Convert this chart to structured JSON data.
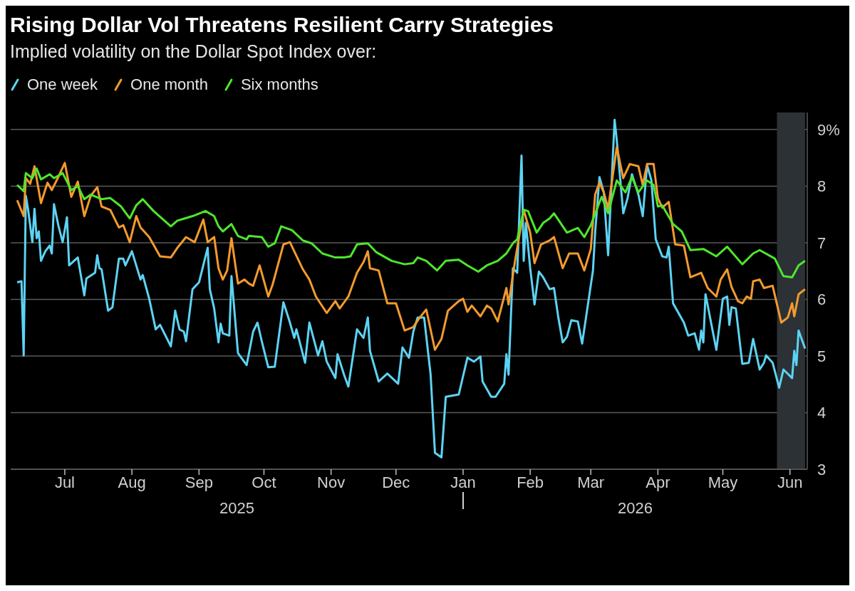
{
  "chart_data": {
    "type": "line",
    "title": "Rising Dollar Vol Threatens Resilient Carry Strategies",
    "subtitle": "Implied volatility on the Dollar Spot Index over:",
    "annotations": [
      "2025",
      "2026"
    ],
    "legend": "top left",
    "grid": "y",
    "line_style": "solid",
    "xlim": [
      "2025-06-06",
      "2026-06-09"
    ],
    "xticks": [
      {
        "value": "2025-07-01",
        "label": "Jul"
      },
      {
        "value": "2025-08-01",
        "label": "Aug"
      },
      {
        "value": "2025-09-01",
        "label": "Sep"
      },
      {
        "value": "2025-10-01",
        "label": "Oct"
      },
      {
        "value": "2025-11-01",
        "label": "Nov"
      },
      {
        "value": "2025-12-01",
        "label": "Dec"
      },
      {
        "value": "2026-01-01",
        "label": "Jan"
      },
      {
        "value": "2026-02-01",
        "label": "Feb"
      },
      {
        "value": "2026-03-01",
        "label": "Mar"
      },
      {
        "value": "2026-04-01",
        "label": "Apr"
      },
      {
        "value": "2026-05-01",
        "label": "May"
      },
      {
        "value": "2026-06-01",
        "label": "Jun"
      }
    ],
    "ylim": [
      3,
      9.3
    ],
    "yticks": [
      3,
      4,
      5,
      6,
      7,
      8,
      {
        "value": 9,
        "label": "9%"
      }
    ],
    "bands": [
      {
        "axis": "x",
        "from": "2026-05-26",
        "to": "2026-06-08",
        "color": "#2c3135"
      }
    ],
    "series": [
      {
        "name": "One week",
        "color": "#5dd3f3",
        "x": [
          "2025-06-09",
          "2025-06-11",
          "2025-06-12",
          "2025-06-13",
          "2025-06-14",
          "2025-06-16",
          "2025-06-17",
          "2025-06-18",
          "2025-06-19",
          "2025-06-20",
          "2025-06-22",
          "2025-06-24",
          "2025-06-25",
          "2025-06-26",
          "2025-06-28",
          "2025-06-30",
          "2025-07-02",
          "2025-07-03",
          "2025-07-07",
          "2025-07-10",
          "2025-07-11",
          "2025-07-15",
          "2025-07-16",
          "2025-07-17",
          "2025-07-18",
          "2025-07-21",
          "2025-07-23",
          "2025-07-26",
          "2025-07-28",
          "2025-07-29",
          "2025-08-01",
          "2025-08-05",
          "2025-08-06",
          "2025-08-09",
          "2025-08-12",
          "2025-08-14",
          "2025-08-19",
          "2025-08-21",
          "2025-08-23",
          "2025-08-25",
          "2025-08-26",
          "2025-08-29",
          "2025-09-01",
          "2025-09-05",
          "2025-09-06",
          "2025-09-08",
          "2025-09-10",
          "2025-09-11",
          "2025-09-12",
          "2025-09-15",
          "2025-09-16",
          "2025-09-19",
          "2025-09-23",
          "2025-09-26",
          "2025-09-28",
          "2025-09-30",
          "2025-10-03",
          "2025-10-06",
          "2025-10-10",
          "2025-10-13",
          "2025-10-15",
          "2025-10-16",
          "2025-10-20",
          "2025-10-22",
          "2025-10-26",
          "2025-10-28",
          "2025-10-30",
          "2025-11-03",
          "2025-11-04",
          "2025-11-07",
          "2025-11-09",
          "2025-11-13",
          "2025-11-16",
          "2025-11-18",
          "2025-11-19",
          "2025-11-23",
          "2025-11-27",
          "2025-12-02",
          "2025-12-04",
          "2025-12-07",
          "2025-12-09",
          "2025-12-11",
          "2025-12-14",
          "2025-12-17",
          "2025-12-19",
          "2025-12-22",
          "2025-12-24",
          "2025-12-30",
          "2026-01-03",
          "2026-01-06",
          "2026-01-09",
          "2026-01-10",
          "2026-01-14",
          "2026-01-16",
          "2026-01-20",
          "2026-01-21",
          "2026-01-22",
          "2026-01-24",
          "2026-01-26",
          "2026-01-28",
          "2026-01-29",
          "2026-01-30",
          "2026-02-01",
          "2026-02-03",
          "2026-02-05",
          "2026-02-07",
          "2026-02-10",
          "2026-02-12",
          "2026-02-14",
          "2026-02-16",
          "2026-02-18",
          "2026-02-20",
          "2026-02-23",
          "2026-02-25",
          "2026-03-02",
          "2026-03-03",
          "2026-03-05",
          "2026-03-07",
          "2026-03-09",
          "2026-03-12",
          "2026-03-13",
          "2026-03-16",
          "2026-03-18",
          "2026-03-20",
          "2026-03-23",
          "2026-03-25",
          "2026-03-27",
          "2026-03-29",
          "2026-03-31",
          "2026-04-03",
          "2026-04-05",
          "2026-04-06",
          "2026-04-08",
          "2026-04-13",
          "2026-04-15",
          "2026-04-18",
          "2026-04-20",
          "2026-04-21",
          "2026-04-22",
          "2026-04-23",
          "2026-04-28",
          "2026-05-01",
          "2026-05-03",
          "2026-05-04",
          "2026-05-05",
          "2026-05-07",
          "2026-05-10",
          "2026-05-13",
          "2026-05-15",
          "2026-05-18",
          "2026-05-20",
          "2026-05-21",
          "2026-05-24",
          "2026-05-27",
          "2026-05-29",
          "2026-06-02",
          "2026-06-03",
          "2026-06-04",
          "2026-06-05",
          "2026-06-08"
        ],
        "values": [
          6.3,
          6.32,
          5.01,
          7.83,
          7.6,
          7.01,
          7.6,
          7.08,
          7.2,
          6.68,
          6.85,
          6.95,
          6.81,
          7.68,
          7.31,
          7.01,
          7.45,
          6.6,
          6.74,
          6.07,
          6.37,
          6.47,
          6.78,
          6.55,
          6.53,
          5.8,
          5.86,
          6.72,
          6.72,
          6.6,
          6.85,
          6.35,
          6.43,
          6.01,
          5.47,
          5.55,
          5.17,
          5.8,
          5.47,
          5.43,
          5.26,
          6.18,
          6.3,
          6.91,
          6.18,
          5.84,
          5.24,
          5.57,
          5.4,
          5.36,
          6.41,
          5.05,
          4.84,
          5.43,
          5.59,
          5.26,
          4.8,
          4.81,
          5.95,
          5.59,
          5.32,
          5.47,
          4.88,
          5.59,
          5.01,
          5.26,
          4.9,
          4.61,
          5.03,
          4.67,
          4.46,
          5.47,
          5.32,
          5.68,
          5.09,
          4.55,
          4.69,
          4.51,
          5.15,
          4.97,
          5.43,
          5.68,
          5.68,
          4.67,
          3.29,
          3.21,
          4.28,
          4.32,
          4.97,
          4.9,
          4.99,
          4.55,
          4.28,
          4.28,
          4.51,
          5.03,
          4.67,
          6.55,
          6.47,
          8.54,
          6.68,
          7.35,
          6.55,
          5.91,
          6.49,
          6.39,
          6.18,
          6.2,
          5.68,
          5.24,
          5.34,
          5.63,
          5.61,
          5.22,
          6.51,
          7.18,
          8.16,
          7.89,
          6.78,
          9.17,
          8.81,
          7.52,
          7.79,
          8.21,
          7.85,
          7.47,
          8.37,
          8.1,
          7.06,
          6.76,
          6.74,
          6.93,
          5.93,
          5.59,
          5.36,
          5.4,
          5.11,
          5.45,
          5.24,
          6.09,
          5.11,
          6.01,
          6.05,
          5.55,
          5.86,
          5.84,
          4.86,
          4.88,
          5.3,
          4.76,
          4.88,
          5.01,
          4.88,
          4.44,
          4.76,
          4.61,
          5.09,
          4.84,
          5.45,
          5.13
        ]
      },
      {
        "name": "One month",
        "color": "#f39a2e",
        "x": [
          "2025-06-09",
          "2025-06-12",
          "2025-06-13",
          "2025-06-15",
          "2025-06-17",
          "2025-06-20",
          "2025-06-23",
          "2025-06-25",
          "2025-06-28",
          "2025-07-01",
          "2025-07-04",
          "2025-07-07",
          "2025-07-10",
          "2025-07-13",
          "2025-07-16",
          "2025-07-18",
          "2025-07-22",
          "2025-07-26",
          "2025-07-28",
          "2025-07-31",
          "2025-08-03",
          "2025-08-05",
          "2025-08-09",
          "2025-08-14",
          "2025-08-19",
          "2025-08-22",
          "2025-08-26",
          "2025-08-30",
          "2025-09-03",
          "2025-09-05",
          "2025-09-08",
          "2025-09-10",
          "2025-09-12",
          "2025-09-14",
          "2025-09-16",
          "2025-09-19",
          "2025-09-22",
          "2025-09-24",
          "2025-09-26",
          "2025-09-29",
          "2025-10-03",
          "2025-10-05",
          "2025-10-10",
          "2025-10-13",
          "2025-10-19",
          "2025-10-22",
          "2025-10-25",
          "2025-10-30",
          "2025-11-03",
          "2025-11-05",
          "2025-11-09",
          "2025-11-13",
          "2025-11-16",
          "2025-11-18",
          "2025-11-19",
          "2025-11-23",
          "2025-11-27",
          "2025-12-01",
          "2025-12-05",
          "2025-12-09",
          "2025-12-12",
          "2025-12-15",
          "2025-12-19",
          "2025-12-22",
          "2025-12-25",
          "2025-12-30",
          "2026-01-01",
          "2026-01-03",
          "2026-01-05",
          "2026-01-09",
          "2026-01-12",
          "2026-01-14",
          "2026-01-17",
          "2026-01-21",
          "2026-01-22",
          "2026-01-25",
          "2026-01-29",
          "2026-02-01",
          "2026-02-03",
          "2026-02-06",
          "2026-02-10",
          "2026-02-12",
          "2026-02-16",
          "2026-02-19",
          "2026-02-23",
          "2026-02-26",
          "2026-03-01",
          "2026-03-03",
          "2026-03-05",
          "2026-03-07",
          "2026-03-09",
          "2026-03-13",
          "2026-03-16",
          "2026-03-19",
          "2026-03-23",
          "2026-03-25",
          "2026-03-27",
          "2026-03-30",
          "2026-04-01",
          "2026-04-03",
          "2026-04-06",
          "2026-04-09",
          "2026-04-13",
          "2026-04-16",
          "2026-04-21",
          "2026-04-24",
          "2026-04-28",
          "2026-04-30",
          "2026-05-03",
          "2026-05-05",
          "2026-05-08",
          "2026-05-10",
          "2026-05-12",
          "2026-05-14",
          "2026-05-15",
          "2026-05-18",
          "2026-05-20",
          "2026-05-24",
          "2026-05-28",
          "2026-05-31",
          "2026-06-02",
          "2026-06-03",
          "2026-06-05",
          "2026-06-08"
        ],
        "values": [
          7.75,
          7.47,
          8.14,
          8.04,
          8.35,
          7.7,
          8.06,
          7.93,
          8.16,
          8.41,
          7.81,
          8.08,
          7.47,
          7.83,
          7.98,
          7.64,
          7.58,
          7.27,
          7.31,
          7.01,
          7.47,
          7.27,
          7.1,
          6.76,
          6.74,
          6.91,
          7.1,
          7.01,
          7.41,
          7.01,
          7.1,
          6.55,
          6.35,
          6.51,
          7.08,
          6.28,
          6.35,
          6.28,
          6.24,
          6.6,
          6.05,
          6.26,
          6.97,
          7.01,
          6.53,
          6.35,
          6.05,
          5.76,
          5.97,
          5.84,
          6.05,
          6.47,
          6.66,
          6.85,
          6.55,
          6.51,
          5.93,
          5.93,
          5.45,
          5.51,
          5.68,
          5.82,
          5.11,
          5.3,
          5.8,
          5.97,
          6.01,
          5.78,
          5.89,
          5.7,
          5.89,
          5.84,
          5.61,
          6.2,
          5.91,
          6.68,
          7.58,
          7.18,
          6.64,
          6.97,
          7.04,
          7.1,
          6.55,
          6.81,
          6.81,
          6.51,
          6.89,
          7.85,
          8.06,
          7.89,
          7.6,
          8.69,
          8.14,
          8.39,
          8.35,
          8.02,
          8.39,
          8.39,
          7.79,
          7.62,
          7.72,
          6.97,
          6.95,
          6.39,
          6.47,
          6.2,
          6.05,
          6.35,
          6.53,
          6.22,
          5.97,
          5.93,
          6.05,
          6.01,
          6.32,
          6.35,
          6.2,
          6.24,
          5.59,
          5.68,
          5.93,
          5.7,
          6.09,
          6.18
        ]
      },
      {
        "name": "Six months",
        "color": "#4ee62c",
        "x": [
          "2025-06-09",
          "2025-06-12",
          "2025-06-13",
          "2025-06-16",
          "2025-06-18",
          "2025-06-20",
          "2025-06-24",
          "2025-06-26",
          "2025-06-30",
          "2025-07-04",
          "2025-07-07",
          "2025-07-10",
          "2025-07-13",
          "2025-07-18",
          "2025-07-22",
          "2025-07-27",
          "2025-07-31",
          "2025-08-03",
          "2025-08-06",
          "2025-08-11",
          "2025-08-19",
          "2025-08-22",
          "2025-08-29",
          "2025-09-04",
          "2025-09-08",
          "2025-09-10",
          "2025-09-12",
          "2025-09-16",
          "2025-09-19",
          "2025-09-23",
          "2025-09-24",
          "2025-09-30",
          "2025-10-03",
          "2025-10-06",
          "2025-10-09",
          "2025-10-14",
          "2025-10-19",
          "2025-10-23",
          "2025-10-28",
          "2025-11-03",
          "2025-11-07",
          "2025-11-10",
          "2025-11-13",
          "2025-11-18",
          "2025-11-22",
          "2025-11-29",
          "2025-12-05",
          "2025-12-09",
          "2025-12-11",
          "2025-12-15",
          "2025-12-20",
          "2025-12-24",
          "2025-12-30",
          "2026-01-03",
          "2026-01-08",
          "2026-01-12",
          "2026-01-17",
          "2026-01-21",
          "2026-01-24",
          "2026-01-26",
          "2026-01-29",
          "2026-01-31",
          "2026-02-04",
          "2026-02-07",
          "2026-02-10",
          "2026-02-12",
          "2026-02-18",
          "2026-02-23",
          "2026-02-26",
          "2026-03-01",
          "2026-03-06",
          "2026-03-09",
          "2026-03-13",
          "2026-03-17",
          "2026-03-20",
          "2026-03-23",
          "2026-03-27",
          "2026-03-30",
          "2026-04-01",
          "2026-04-03",
          "2026-04-08",
          "2026-04-12",
          "2026-04-16",
          "2026-04-22",
          "2026-04-28",
          "2026-05-03",
          "2026-05-10",
          "2026-05-15",
          "2026-05-18",
          "2026-05-25",
          "2026-05-29",
          "2026-06-02",
          "2026-06-05",
          "2026-06-08"
        ],
        "values": [
          8.02,
          7.91,
          8.23,
          8.14,
          8.31,
          8.12,
          8.21,
          8.14,
          8.23,
          7.93,
          8.0,
          7.77,
          7.85,
          7.77,
          7.79,
          7.64,
          7.43,
          7.66,
          7.77,
          7.56,
          7.29,
          7.39,
          7.47,
          7.56,
          7.47,
          7.29,
          7.2,
          7.33,
          7.12,
          7.06,
          7.12,
          7.1,
          6.93,
          6.99,
          7.29,
          7.22,
          7.04,
          6.99,
          6.81,
          6.74,
          6.74,
          6.76,
          6.97,
          6.99,
          6.83,
          6.68,
          6.62,
          6.64,
          6.74,
          6.68,
          6.51,
          6.68,
          6.7,
          6.6,
          6.49,
          6.6,
          6.68,
          6.81,
          6.99,
          7.06,
          7.58,
          7.56,
          7.18,
          7.35,
          7.43,
          7.52,
          7.18,
          7.26,
          7.1,
          7.31,
          7.81,
          7.52,
          8.1,
          7.89,
          8.16,
          7.89,
          8.1,
          8.02,
          7.64,
          7.66,
          7.33,
          7.2,
          6.87,
          6.89,
          6.76,
          6.93,
          6.62,
          6.81,
          6.87,
          6.72,
          6.41,
          6.39,
          6.6,
          6.68
        ]
      }
    ]
  }
}
